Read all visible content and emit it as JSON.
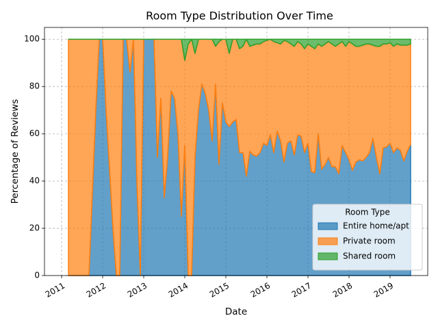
{
  "chart_data": {
    "type": "stacked_area",
    "title": "Room Type Distribution Over Time",
    "xlabel": "Date",
    "ylabel": "Percentage of Reviews",
    "legend_title": "Room Type",
    "legend": "lower right",
    "grid": true,
    "x": [
      2011.167,
      2011.25,
      2011.333,
      2011.417,
      2011.5,
      2011.583,
      2011.667,
      2011.75,
      2011.833,
      2011.917,
      2012.0,
      2012.083,
      2012.167,
      2012.25,
      2012.333,
      2012.417,
      2012.5,
      2012.583,
      2012.667,
      2012.75,
      2012.833,
      2012.917,
      2013.0,
      2013.083,
      2013.167,
      2013.25,
      2013.333,
      2013.417,
      2013.5,
      2013.583,
      2013.667,
      2013.75,
      2013.833,
      2013.917,
      2014.0,
      2014.083,
      2014.167,
      2014.25,
      2014.333,
      2014.417,
      2014.5,
      2014.583,
      2014.667,
      2014.75,
      2014.833,
      2014.917,
      2015.0,
      2015.083,
      2015.167,
      2015.25,
      2015.333,
      2015.417,
      2015.5,
      2015.583,
      2015.667,
      2015.75,
      2015.833,
      2015.917,
      2016.0,
      2016.083,
      2016.167,
      2016.25,
      2016.333,
      2016.417,
      2016.5,
      2016.583,
      2016.667,
      2016.75,
      2016.833,
      2016.917,
      2017.0,
      2017.083,
      2017.167,
      2017.25,
      2017.333,
      2017.417,
      2017.5,
      2017.583,
      2017.667,
      2017.75,
      2017.833,
      2017.917,
      2018.0,
      2018.083,
      2018.167,
      2018.25,
      2018.333,
      2018.417,
      2018.5,
      2018.583,
      2018.667,
      2018.75,
      2018.833,
      2018.917,
      2019.0,
      2019.083,
      2019.167,
      2019.25,
      2019.333,
      2019.417,
      2019.5
    ],
    "xlim": [
      2010.583,
      2019.917
    ],
    "xticks": [
      2011,
      2012,
      2013,
      2014,
      2015,
      2016,
      2017,
      2018,
      2019
    ],
    "ylim": [
      0,
      105
    ],
    "yticks": [
      0,
      20,
      40,
      60,
      80,
      100
    ],
    "series": [
      {
        "name": "Entire home/apt",
        "color": "#1f77b4",
        "values": [
          0,
          0,
          0,
          0,
          0,
          0,
          0,
          35,
          70,
          100,
          100,
          70,
          45,
          20,
          0,
          0,
          100,
          100,
          86,
          100,
          40,
          0,
          100,
          100,
          100,
          100,
          50,
          75,
          33,
          50,
          78,
          75,
          60,
          25,
          55,
          0,
          0,
          50,
          70,
          81,
          77,
          70,
          57,
          81,
          47,
          73,
          65,
          63,
          65,
          66,
          52,
          52,
          42,
          52.5,
          51,
          50.5,
          52,
          56,
          55,
          59.5,
          52,
          61,
          57,
          48,
          56,
          57,
          51,
          59.5,
          59,
          52,
          56,
          44,
          43.5,
          60,
          45,
          47,
          50,
          46,
          46,
          43,
          55,
          52,
          49,
          44.5,
          48,
          49,
          48.5,
          50,
          52,
          58,
          50,
          43,
          54,
          54.5,
          56,
          52,
          54,
          53,
          48.5,
          52.5,
          55.5
        ]
      },
      {
        "name": "Private room",
        "color": "#ff7f0e",
        "values": [
          100,
          100,
          100,
          100,
          100,
          100,
          100,
          65,
          30,
          0,
          0,
          30,
          55,
          80,
          100,
          100,
          0,
          0,
          14,
          0,
          60,
          100,
          0,
          0,
          0,
          0,
          50,
          25,
          67,
          50,
          22,
          25,
          40,
          75,
          36,
          98,
          100,
          44,
          30,
          19,
          23,
          30,
          43,
          16,
          52,
          27,
          35,
          31,
          35,
          34,
          44,
          45,
          58,
          44.5,
          46.5,
          47.5,
          46,
          43,
          44.5,
          40.5,
          47,
          37.5,
          41,
          51.5,
          43,
          41,
          46,
          39.5,
          39,
          44,
          42,
          53,
          52.5,
          38,
          52,
          51,
          49,
          52,
          51,
          55,
          44,
          45,
          50,
          53.5,
          49,
          48,
          49,
          48,
          46,
          39.5,
          47,
          54,
          44,
          43.5,
          42.5,
          45,
          44,
          44.5,
          49,
          45,
          42.5
        ]
      },
      {
        "name": "Shared room",
        "color": "#2ca02c",
        "values": [
          0,
          0,
          0,
          0,
          0,
          0,
          0,
          0,
          0,
          0,
          0,
          0,
          0,
          0,
          0,
          0,
          0,
          0,
          0,
          0,
          0,
          0,
          0,
          0,
          0,
          0,
          0,
          0,
          0,
          0,
          0,
          0,
          0,
          0,
          9,
          2,
          0,
          6,
          0,
          0,
          0,
          0,
          0,
          3,
          1,
          0,
          0,
          6,
          0,
          0,
          4,
          3,
          0,
          3,
          2.5,
          2,
          2,
          1,
          0.5,
          0,
          1,
          1.5,
          2,
          0.5,
          1,
          2,
          3,
          1,
          2,
          4,
          2,
          3,
          4,
          2,
          3,
          2,
          1,
          2,
          3,
          2,
          1,
          3,
          1,
          2,
          3,
          3,
          2.5,
          2,
          2,
          2.5,
          3,
          3,
          2,
          2,
          1.5,
          3,
          2,
          2.5,
          2.5,
          2.5,
          2
        ]
      }
    ]
  }
}
